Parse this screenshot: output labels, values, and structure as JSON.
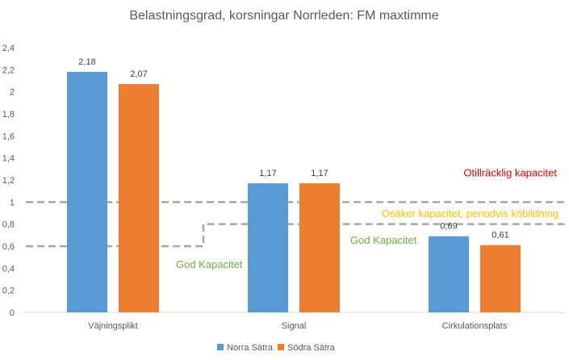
{
  "chart_data": {
    "type": "bar",
    "title": "Belastningsgrad, korsningar Norrleden: FM maxtimme",
    "categories": [
      "Väjningsplikt",
      "Signal",
      "Cirkulationsplats"
    ],
    "series": [
      {
        "name": "Norra Sätra",
        "values": [
          2.18,
          1.17,
          0.69
        ],
        "labels": [
          "2,18",
          "1,17",
          "0,69"
        ],
        "color": "#5B9BD5"
      },
      {
        "name": "Södra Sätra",
        "values": [
          2.07,
          1.17,
          0.61
        ],
        "labels": [
          "2,07",
          "1,17",
          "0,61"
        ],
        "color": "#ED7D31"
      }
    ],
    "ylim": [
      0,
      2.4
    ],
    "y_ticks": [
      0,
      0.2,
      0.4,
      0.6,
      0.8,
      1,
      1.2,
      1.4,
      1.6,
      1.8,
      2,
      2.2,
      2.4
    ],
    "y_tick_labels": [
      "0",
      "0,2",
      "0,4",
      "0,6",
      "0,8",
      "1",
      "1,2",
      "1,4",
      "1,6",
      "1,8",
      "2",
      "2,2",
      "2,4"
    ],
    "legend_position": "bottom",
    "grid": false,
    "threshold_lines": [
      {
        "name": "otillracklig",
        "y": 1.0,
        "color": "#A6A6A6",
        "dashed": true
      },
      {
        "name": "god-kapacitet-step",
        "steps": [
          {
            "category_span": [
              0,
              0
            ],
            "y": 0.6
          },
          {
            "category_span": [
              1,
              2
            ],
            "y": 0.8
          }
        ],
        "color": "#A6A6A6",
        "dashed": true
      }
    ],
    "annotations": [
      {
        "key": "otillracklig",
        "text": "Otillräcklig kapacitet",
        "color": "#E00000",
        "y": 1.27
      },
      {
        "key": "osaker",
        "text": "Osäker kapacitet, periodvis köbildning",
        "color": "#FFC000",
        "y": 0.9
      },
      {
        "key": "god2",
        "text": "God Kapacitet",
        "color": "#70AD47",
        "y": 0.66
      },
      {
        "key": "god1",
        "text": "God Kapacitet",
        "color": "#70AD47",
        "y": 0.44
      }
    ]
  }
}
